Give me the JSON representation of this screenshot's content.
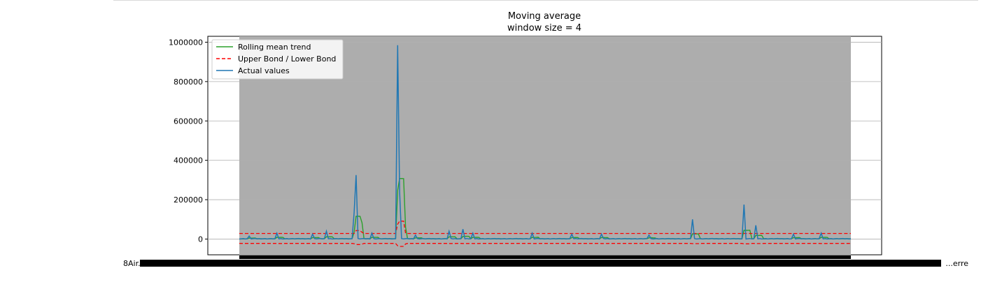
{
  "chart_data": {
    "type": "line",
    "title": "Moving average",
    "subtitle": "window size = 4",
    "ylim": [
      -80000,
      1030000
    ],
    "yticks": [
      0,
      200000,
      400000,
      600000,
      800000,
      1000000
    ],
    "ytick_labels": [
      "0",
      "200000",
      "400000",
      "600000",
      "800000",
      "1000000"
    ],
    "grid": true,
    "legend_position": "top-left",
    "x_count": 310,
    "x_tick_labels_left": "8Air...",
    "x_tick_labels_right": "...erre",
    "series": [
      {
        "name": "Rolling mean trend",
        "color": "#2ca02c",
        "style": "solid"
      },
      {
        "name": "Upper Bond / Lower Bond",
        "color": "#ff0000",
        "style": "dashed",
        "upper": 28000,
        "lower": -22000
      },
      {
        "name": "Actual values",
        "color": "#1f77b4",
        "style": "solid",
        "baseline": 0,
        "peaks": [
          {
            "x": 5,
            "y": 15000
          },
          {
            "x": 19,
            "y": 30000
          },
          {
            "x": 37,
            "y": 25000
          },
          {
            "x": 44,
            "y": 40000
          },
          {
            "x": 58,
            "y": 135000
          },
          {
            "x": 59,
            "y": 325000
          },
          {
            "x": 67,
            "y": 30000
          },
          {
            "x": 80,
            "y": 985000
          },
          {
            "x": 81,
            "y": 240000
          },
          {
            "x": 89,
            "y": 20000
          },
          {
            "x": 106,
            "y": 40000
          },
          {
            "x": 113,
            "y": 50000
          },
          {
            "x": 118,
            "y": 30000
          },
          {
            "x": 148,
            "y": 30000
          },
          {
            "x": 168,
            "y": 25000
          },
          {
            "x": 183,
            "y": 25000
          },
          {
            "x": 207,
            "y": 20000
          },
          {
            "x": 229,
            "y": 100000
          },
          {
            "x": 255,
            "y": 175000
          },
          {
            "x": 261,
            "y": 70000
          },
          {
            "x": 280,
            "y": 25000
          },
          {
            "x": 294,
            "y": 30000
          }
        ]
      }
    ]
  }
}
